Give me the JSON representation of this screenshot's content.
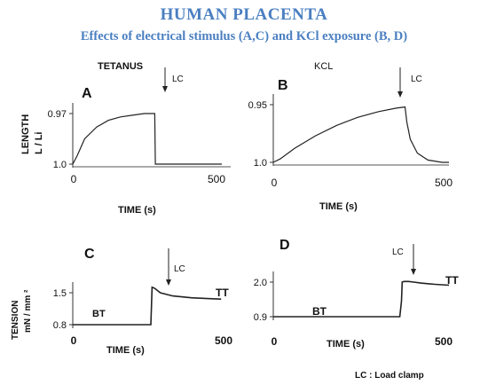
{
  "title": "HUMAN PLACENTA",
  "subtitle": "Effects of electrical stimulus (A,C) and KCl exposure (B, D)",
  "length_ylabel_line1": "LENGTH",
  "length_ylabel_line2": "L / Li",
  "tension_ylabel_line1": "TENSION",
  "tension_ylabel_line2": "mN / mm ²",
  "time_label": "TIME (s)",
  "footnote": "LC : Load clamp",
  "colors": {
    "title": "#4a7fc1",
    "trace": "#222222"
  },
  "chart_data": [
    {
      "id": "A",
      "type": "line",
      "header": "TETANUS",
      "ylabel": "LENGTH L / Li",
      "xlabel": "TIME (s)",
      "xlim": [
        0,
        500
      ],
      "xticks": [
        "0",
        "500"
      ],
      "yticks": [
        "0.97",
        "1.0"
      ],
      "annotation": "LC",
      "x": [
        0,
        15,
        40,
        80,
        120,
        160,
        200,
        240,
        270,
        275,
        277,
        300,
        400,
        500
      ],
      "y": [
        1.0,
        0.995,
        0.985,
        0.978,
        0.974,
        0.972,
        0.971,
        0.97,
        0.97,
        0.97,
        1.0,
        1.0,
        1.0,
        1.0
      ]
    },
    {
      "id": "B",
      "type": "line",
      "header": "KCL",
      "ylabel": "LENGTH L / Li",
      "xlabel": "TIME (s)",
      "xlim": [
        0,
        500
      ],
      "xticks": [
        "0",
        "500"
      ],
      "yticks": [
        "0.95",
        "1.0"
      ],
      "annotation": "LC",
      "x": [
        0,
        20,
        60,
        120,
        180,
        240,
        300,
        350,
        375,
        380,
        390,
        410,
        440,
        480,
        500
      ],
      "y": [
        1.0,
        0.997,
        0.988,
        0.977,
        0.968,
        0.961,
        0.956,
        0.953,
        0.952,
        0.965,
        0.98,
        0.992,
        0.998,
        1.0,
        1.0
      ]
    },
    {
      "id": "C",
      "type": "line",
      "header": "",
      "ylabel": "TENSION mN / mm ²",
      "xlabel": "TIME (s)",
      "xlim": [
        0,
        500
      ],
      "xticks": [
        "0",
        "500"
      ],
      "yticks": [
        "1.5",
        "0.8"
      ],
      "annotation": "LC",
      "labels": [
        "BT",
        "TT"
      ],
      "x": [
        0,
        100,
        200,
        250,
        252,
        254,
        262,
        280,
        320,
        380,
        440,
        475
      ],
      "y": [
        0.8,
        0.8,
        0.8,
        0.8,
        1.2,
        1.62,
        1.6,
        1.5,
        1.43,
        1.39,
        1.37,
        1.36
      ]
    },
    {
      "id": "D",
      "type": "line",
      "header": "",
      "ylabel": "TENSION mN / mm ²",
      "xlabel": "TIME (s)",
      "xlim": [
        0,
        500
      ],
      "xticks": [
        "0",
        "500"
      ],
      "yticks": [
        "2.0",
        "0.9"
      ],
      "annotation": "LC",
      "labels": [
        "BT",
        "TT"
      ],
      "x": [
        0,
        150,
        300,
        360,
        365,
        367,
        372,
        385,
        400,
        420,
        440,
        460,
        500
      ],
      "y": [
        0.9,
        0.9,
        0.9,
        0.9,
        1.4,
        2.0,
        2.02,
        2.02,
        2.0,
        1.97,
        1.95,
        1.93,
        1.9
      ]
    }
  ]
}
